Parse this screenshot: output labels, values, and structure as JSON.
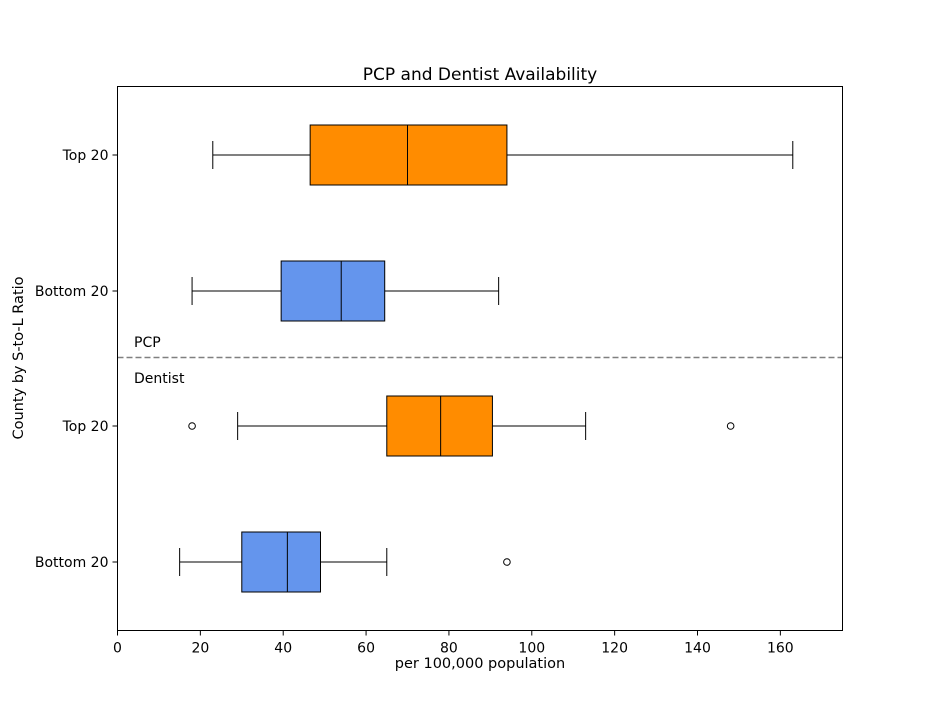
{
  "chart_data": {
    "type": "boxplot",
    "orientation": "horizontal",
    "title": "PCP and Dentist Availability",
    "xlabel": "per 100,000 population",
    "ylabel": "County by S-to-L Ratio",
    "xlim": [
      0,
      175
    ],
    "xticks": [
      0,
      20,
      40,
      60,
      80,
      100,
      120,
      140,
      160
    ],
    "grid": false,
    "groups": [
      {
        "name": "PCP",
        "boxes": [
          {
            "label": "Top 20",
            "color": "#FF8C00",
            "whislo": 23,
            "q1": 46.5,
            "med": 70,
            "q3": 94,
            "whishi": 163,
            "fliers": []
          },
          {
            "label": "Bottom 20",
            "color": "#6495ED",
            "whislo": 18,
            "q1": 39.5,
            "med": 54,
            "q3": 64.5,
            "whishi": 92,
            "fliers": []
          }
        ]
      },
      {
        "name": "Dentist",
        "boxes": [
          {
            "label": "Top 20",
            "color": "#FF8C00",
            "whislo": 29,
            "q1": 65,
            "med": 78,
            "q3": 90.5,
            "whishi": 113,
            "fliers": [
              18,
              148
            ]
          },
          {
            "label": "Bottom 20",
            "color": "#6495ED",
            "whislo": 15,
            "q1": 30,
            "med": 41,
            "q3": 49,
            "whishi": 65,
            "fliers": [
              94
            ]
          }
        ]
      }
    ],
    "divider_style": "dashed",
    "divider_color": "#808080"
  }
}
